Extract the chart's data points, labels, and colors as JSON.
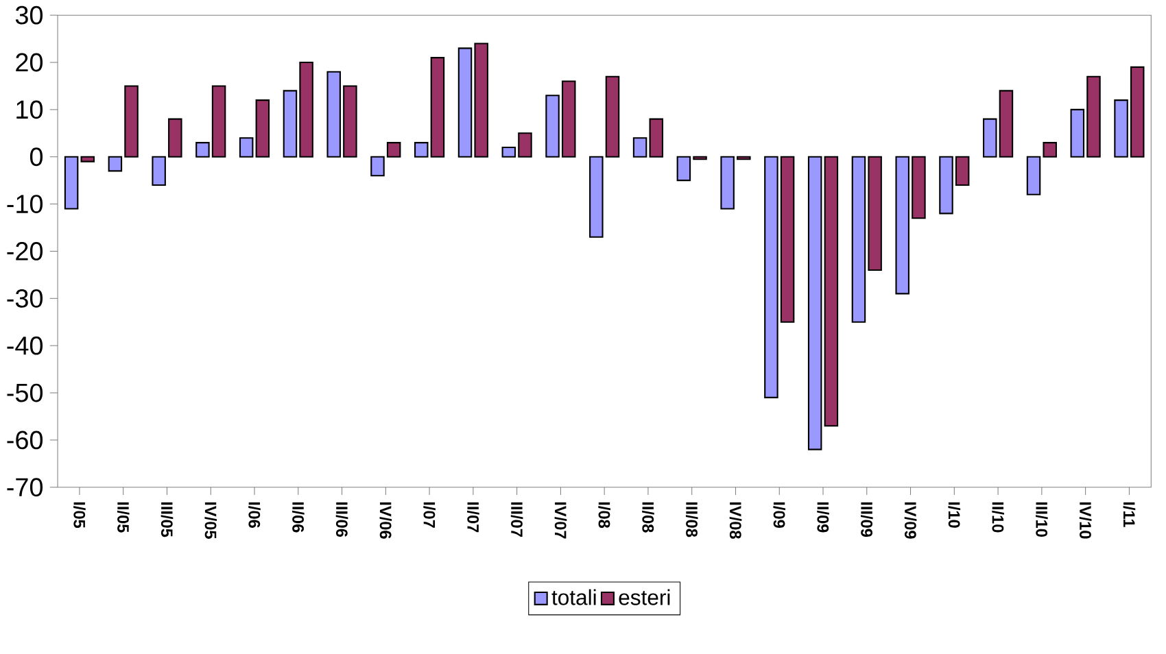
{
  "chart_data": {
    "type": "bar",
    "categories": [
      "I/05",
      "II/05",
      "III/05",
      "IV/05",
      "I/06",
      "II/06",
      "III/06",
      "IV/06",
      "I/07",
      "II/07",
      "III/07",
      "IV/07",
      "I/08",
      "II/08",
      "III/08",
      "IV/08",
      "I/09",
      "II/09",
      "III/09",
      "IV/09",
      "I/10",
      "II/10",
      "III/10",
      "IV/10",
      "I/11"
    ],
    "series": [
      {
        "name": "totali",
        "color": "#9999ff",
        "values": [
          -11,
          -3,
          -6,
          3,
          4,
          14,
          18,
          -4,
          3,
          23,
          2,
          13,
          -17,
          4,
          -5,
          -11,
          -51,
          -62,
          -35,
          -29,
          -12,
          8,
          -8,
          10,
          12
        ]
      },
      {
        "name": "esteri",
        "color": "#993366",
        "values": [
          -1,
          15,
          8,
          15,
          12,
          20,
          15,
          3,
          21,
          24,
          5,
          16,
          17,
          8,
          -0.5,
          -0.5,
          -35,
          -57,
          -24,
          -13,
          -6,
          14,
          3,
          17,
          19
        ]
      }
    ],
    "ylim": [
      -70,
      30
    ],
    "yticks": [
      -70,
      -60,
      -50,
      -40,
      -30,
      -20,
      -10,
      0,
      10,
      20,
      30
    ],
    "grid": false,
    "legend": "bottom"
  }
}
